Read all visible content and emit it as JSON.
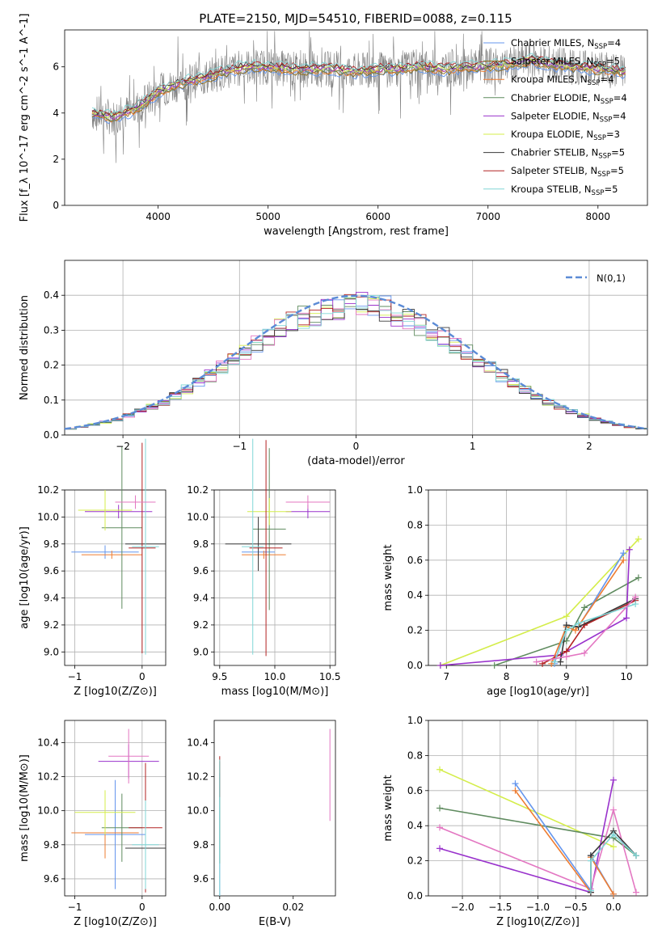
{
  "title": "PLATE=2150, MJD=54510, FIBERID=0088, z=0.115",
  "colors": {
    "chabrier_miles": "#6495ed",
    "salpeter_miles": "#8b6914",
    "kroupa_miles": "#ee7d32",
    "chabrier_elodie": "#5f8b5f",
    "salpeter_elodie": "#9932cc",
    "kroupa_elodie": "#d4ed4a",
    "chabrier_stelib": "#3a3a3a",
    "salpeter_stelib": "#b22222",
    "kroupa_stelib": "#80d6d6",
    "data": "#808080",
    "pink": "#e377c2",
    "gauss": "#5b8bd6"
  },
  "chart_data": [
    {
      "id": "spectrum",
      "type": "line",
      "title": "PLATE=2150, MJD=54510, FIBERID=0088, z=0.115",
      "xlabel": "wavelength [Angstrom, rest frame]",
      "ylabel": "Flux [f_λ 10^-17 erg cm^-2 s^-1 A^-1]",
      "xlim": [
        3150,
        8450
      ],
      "ylim": [
        0,
        7.6
      ],
      "xticks": [
        "4000",
        "5000",
        "6000",
        "7000",
        "8000"
      ],
      "yticks": [
        "0",
        "2",
        "4",
        "6"
      ],
      "legend": [
        {
          "key": "chabrier_miles",
          "label": "Chabrier MILES, N",
          "sub": "SSP",
          "tail": "=4"
        },
        {
          "key": "salpeter_miles",
          "label": "Salpeter MILES, N",
          "sub": "SSP",
          "tail": "=5"
        },
        {
          "key": "kroupa_miles",
          "label": "Kroupa MILES, N",
          "sub": "SSP",
          "tail": "=4"
        },
        {
          "key": "chabrier_elodie",
          "label": "Chabrier ELODIE, N",
          "sub": "SSP",
          "tail": "=4"
        },
        {
          "key": "salpeter_elodie",
          "label": "Salpeter ELODIE, N",
          "sub": "SSP",
          "tail": "=4"
        },
        {
          "key": "kroupa_elodie",
          "label": "Kroupa ELODIE, N",
          "sub": "SSP",
          "tail": "=3"
        },
        {
          "key": "chabrier_stelib",
          "label": "Chabrier STELIB, N",
          "sub": "SSP",
          "tail": "=5"
        },
        {
          "key": "salpeter_stelib",
          "label": "Salpeter STELIB, N",
          "sub": "SSP",
          "tail": "=5"
        },
        {
          "key": "kroupa_stelib",
          "label": "Kroupa STELIB, N",
          "sub": "SSP",
          "tail": "=5"
        }
      ],
      "continuum": [
        [
          3400,
          4.0
        ],
        [
          3600,
          3.8
        ],
        [
          3800,
          4.2
        ],
        [
          4000,
          4.9
        ],
        [
          4200,
          5.3
        ],
        [
          4400,
          5.5
        ],
        [
          4600,
          5.8
        ],
        [
          4800,
          6.0
        ],
        [
          5000,
          6.0
        ],
        [
          5200,
          5.9
        ],
        [
          5400,
          5.9
        ],
        [
          5600,
          5.9
        ],
        [
          5800,
          5.8
        ],
        [
          6000,
          5.9
        ],
        [
          6200,
          5.9
        ],
        [
          6400,
          6.0
        ],
        [
          6600,
          5.9
        ],
        [
          6800,
          6.0
        ],
        [
          7000,
          6.0
        ],
        [
          7200,
          6.1
        ],
        [
          7400,
          6.3
        ],
        [
          7600,
          6.1
        ],
        [
          7800,
          6.0
        ],
        [
          8000,
          5.9
        ],
        [
          8200,
          5.8
        ]
      ]
    },
    {
      "id": "residuals",
      "type": "bar",
      "xlabel": "(data-model)/error",
      "ylabel": "Normed distribution",
      "xlim": [
        -2.5,
        2.5
      ],
      "ylim": [
        0,
        0.5
      ],
      "xticks": [
        "−2",
        "−1",
        "0",
        "1",
        "2"
      ],
      "yticks": [
        "0.0",
        "0.1",
        "0.2",
        "0.3",
        "0.4"
      ],
      "legend_label": "N(0,1)",
      "bin_width": 0.1
    },
    {
      "id": "age_vs_Z",
      "type": "scatter",
      "xlabel": "Z [log10(Z/Z⊙)]",
      "ylabel": "age [log10(age/yr)]",
      "xlim": [
        -1.15,
        0.35
      ],
      "ylim": [
        8.9,
        10.2
      ],
      "xticks": [
        "−1",
        "0"
      ],
      "yticks": [
        "9.0",
        "9.2",
        "9.4",
        "9.6",
        "9.8",
        "10.0",
        "10.2"
      ]
    },
    {
      "id": "age_vs_mass",
      "type": "scatter",
      "xlabel": "mass [log10(M/M⊙)]",
      "xlim": [
        9.45,
        10.55
      ],
      "ylim": [
        8.9,
        10.2
      ],
      "xticks": [
        "9.5",
        "10.0",
        "10.5"
      ],
      "yticks": [
        "9.0",
        "9.2",
        "9.4",
        "9.6",
        "9.8",
        "10.0",
        "10.2"
      ]
    },
    {
      "id": "weight_vs_age",
      "type": "line",
      "xlabel": "age [log10(age/yr)]",
      "ylabel": "mass weight",
      "xlim": [
        6.7,
        10.35
      ],
      "ylim": [
        0,
        1.0
      ],
      "xticks": [
        "7",
        "8",
        "9",
        "10"
      ],
      "yticks": [
        "0.0",
        "0.2",
        "0.4",
        "0.6",
        "0.8",
        "1.0"
      ]
    },
    {
      "id": "mass_vs_Z",
      "type": "scatter",
      "xlabel": "Z [log10(Z/Z⊙)]",
      "ylabel": "mass [log10(M/M⊙)]",
      "xlim": [
        -1.15,
        0.35
      ],
      "ylim": [
        9.5,
        10.53
      ],
      "xticks": [
        "−1",
        "0"
      ],
      "yticks": [
        "9.6",
        "9.8",
        "10.0",
        "10.2",
        "10.4"
      ]
    },
    {
      "id": "mass_vs_ebv",
      "type": "scatter",
      "xlabel": "E(B-V)",
      "xlim": [
        -0.0015,
        0.0315
      ],
      "ylim": [
        9.5,
        10.53
      ],
      "xticks": [
        "0.00",
        "0.02"
      ],
      "yticks": [
        "9.6",
        "9.8",
        "10.0",
        "10.2",
        "10.4"
      ]
    },
    {
      "id": "weight_vs_Z",
      "type": "line",
      "xlabel": "Z [log10(Z/Z⊙)]",
      "ylabel": "mass weight",
      "xlim": [
        -2.45,
        0.45
      ],
      "ylim": [
        0,
        1.0
      ],
      "xticks": [
        "−2.0",
        "−1.5",
        "−1.0",
        "−0.5",
        "0.0"
      ],
      "yticks": [
        "0.0",
        "0.2",
        "0.4",
        "0.6",
        "0.8",
        "1.0"
      ]
    }
  ]
}
